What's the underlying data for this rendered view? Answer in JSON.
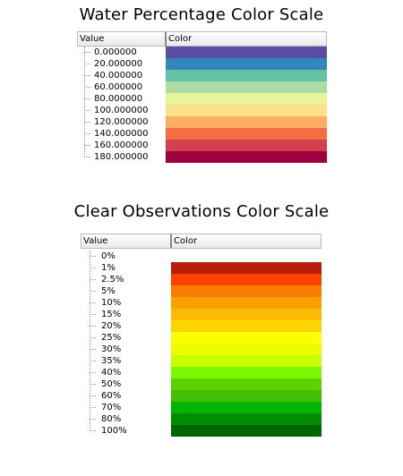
{
  "water": {
    "title": "Water Percentage Color Scale",
    "header_value": "Value",
    "header_color": "Color",
    "rows": [
      {
        "label": "0.000000",
        "color": "#5b4da3"
      },
      {
        "label": "20.000000",
        "color": "#3288bd"
      },
      {
        "label": "40.000000",
        "color": "#66c2a5"
      },
      {
        "label": "60.000000",
        "color": "#abdda4"
      },
      {
        "label": "80.000000",
        "color": "#e6f598"
      },
      {
        "label": "100.000000",
        "color": "#fee08b"
      },
      {
        "label": "120.000000",
        "color": "#fdae61"
      },
      {
        "label": "140.000000",
        "color": "#f46d43"
      },
      {
        "label": "160.000000",
        "color": "#d53e4f"
      },
      {
        "label": "180.000000",
        "color": "#9e0142"
      }
    ]
  },
  "clear": {
    "title": "Clear Observations Color Scale",
    "header_value": "Value",
    "header_color": "Color",
    "rows": [
      {
        "label": "0%",
        "color": null
      },
      {
        "label": "1%",
        "color": "#b81e0a"
      },
      {
        "label": "2.5%",
        "color": "#fc4400"
      },
      {
        "label": "5%",
        "color": "#fc7e00"
      },
      {
        "label": "10%",
        "color": "#fca000"
      },
      {
        "label": "15%",
        "color": "#fcba00"
      },
      {
        "label": "20%",
        "color": "#fcd500"
      },
      {
        "label": "25%",
        "color": "#fcff00"
      },
      {
        "label": "30%",
        "color": "#e9ff00"
      },
      {
        "label": "35%",
        "color": "#c8ff00"
      },
      {
        "label": "40%",
        "color": "#7cf800"
      },
      {
        "label": "50%",
        "color": "#5fd000"
      },
      {
        "label": "60%",
        "color": "#40c000"
      },
      {
        "label": "70%",
        "color": "#00b400"
      },
      {
        "label": "80%",
        "color": "#008c00"
      },
      {
        "label": "100%",
        "color": "#006600"
      }
    ]
  }
}
